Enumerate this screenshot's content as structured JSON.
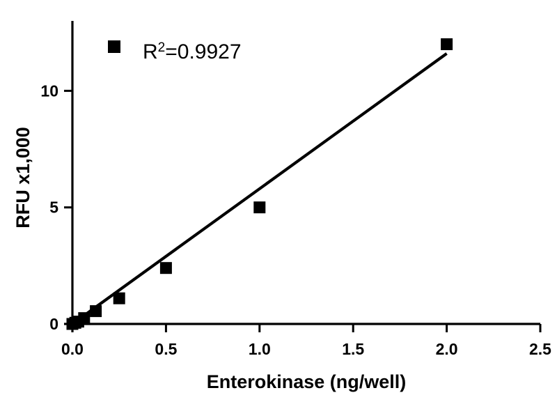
{
  "chart_data": {
    "type": "scatter",
    "title": "",
    "xlabel": "Enterokinase (ng/well)",
    "ylabel": "RFU x1,000",
    "xlim": [
      0,
      2.5
    ],
    "ylim": [
      0,
      13
    ],
    "x_ticks": [
      "0.0",
      "0.5",
      "1.0",
      "1.5",
      "2.0",
      "2.5"
    ],
    "x_tick_values": [
      0,
      0.5,
      1.0,
      1.5,
      2.0,
      2.5
    ],
    "y_ticks": [
      "0",
      "5",
      "10"
    ],
    "y_tick_values": [
      0,
      5,
      10
    ],
    "grid": false,
    "legend": {
      "position": "top-left",
      "label_base": "R",
      "label_sup": "2",
      "label_value": "=0.9927"
    },
    "series": [
      {
        "marker": "square",
        "color": "#000000",
        "x": [
          0,
          0.0156,
          0.03125,
          0.0625,
          0.125,
          0.25,
          0.5,
          1.0,
          2.0
        ],
        "y": [
          0.0,
          0.05,
          0.1,
          0.25,
          0.55,
          1.1,
          2.4,
          5.0,
          12.0
        ]
      }
    ],
    "fit_line": {
      "x": [
        0,
        2.0
      ],
      "y": [
        0.0,
        11.6
      ]
    }
  }
}
